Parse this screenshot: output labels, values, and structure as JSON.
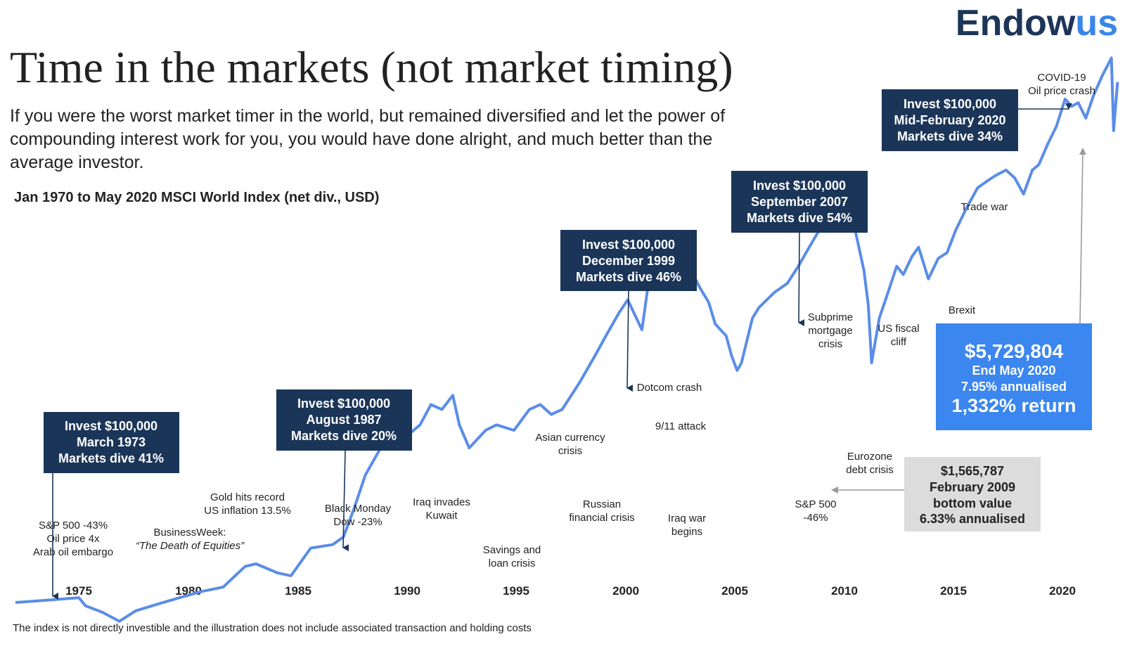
{
  "logo": {
    "part1": "Endow",
    "part2": "us",
    "color1": "#1d3557",
    "color2": "#3a86e8"
  },
  "title": "Time in the markets (not market timing)",
  "subtitle_lines": [
    "If you were the worst market timer in the world, but remained diversified and let the power of",
    "compounding interest work for you, you would have done alright, and much better than the",
    "average investor."
  ],
  "index_label": "Jan 1970 to May 2020 MSCI World Index (net div., USD)",
  "footnote": "The index is not directly investible and the illustration does not include associated transaction and holding costs",
  "colors": {
    "line": "#5b8de8",
    "navy": "#1b3558",
    "blue_box": "#3b86ef",
    "grey_box": "#dcdcdc",
    "text": "#222222"
  },
  "chart_data": {
    "type": "line",
    "x_ticks": [
      "1975",
      "1980",
      "1985",
      "1990",
      "1995",
      "2000",
      "2005",
      "2010",
      "2015",
      "2020"
    ],
    "x_range": [
      1970.0,
      2020.4
    ],
    "scale": "log",
    "series": [
      {
        "values_note": "",
        "x": [
          1970.0,
          1971.0,
          1972.0,
          1972.9,
          1973.2,
          1974.0,
          1974.75,
          1975.5,
          1976.5,
          1977.5,
          1978.5,
          1979.5,
          1980.5,
          1981.0,
          1982.0,
          1982.6,
          1983.5,
          1984.5,
          1985.0,
          1985.5,
          1986.0,
          1986.7,
          1987.3,
          1987.65,
          1987.9,
          1988.5,
          1989.0,
          1989.5,
          1990.0,
          1990.3,
          1990.75,
          1991.5,
          1992.0,
          1992.8,
          1993.5,
          1994.0,
          1994.5,
          1995.0,
          1995.8,
          1996.5,
          1997.0,
          1997.6,
          1998.0,
          1998.65,
          1999.0,
          1999.5,
          1999.95,
          2000.3,
          2000.8,
          2001.3,
          2001.7,
          2002.0,
          2002.5,
          2002.75,
          2003.0,
          2003.2,
          2003.7,
          2004.0,
          2004.7,
          2005.3,
          2005.8,
          2006.3,
          2006.8,
          2007.3,
          2007.8,
          2008.0,
          2008.4,
          2008.8,
          2009.0,
          2009.15,
          2009.5,
          2009.9,
          2010.3,
          2010.6,
          2011.0,
          2011.3,
          2011.75,
          2012.2,
          2012.6,
          2013.0,
          2013.5,
          2014.0,
          2014.4,
          2014.8,
          2015.3,
          2015.7,
          2016.1,
          2016.5,
          2016.8,
          2017.2,
          2017.6,
          2018.0,
          2018.3,
          2018.6,
          2018.95,
          2019.3,
          2019.7,
          2020.12,
          2020.22,
          2020.4
        ],
        "values": [
          100,
          101,
          102,
          103,
          98,
          94,
          89,
          95,
          99,
          103,
          107,
          110,
          125,
          127,
          120,
          118,
          140,
          143,
          150,
          180,
          220,
          260,
          340,
          365,
          280,
          300,
          340,
          330,
          360,
          300,
          260,
          290,
          300,
          290,
          330,
          340,
          320,
          330,
          390,
          460,
          520,
          600,
          650,
          540,
          760,
          820,
          980,
          870,
          800,
          700,
          640,
          560,
          520,
          460,
          420,
          440,
          580,
          620,
          680,
          720,
          800,
          900,
          1010,
          1150,
          1260,
          1180,
          1000,
          780,
          630,
          440,
          580,
          680,
          800,
          760,
          850,
          900,
          740,
          840,
          870,
          1000,
          1150,
          1300,
          1350,
          1400,
          1450,
          1380,
          1250,
          1450,
          1500,
          1700,
          1900,
          2250,
          2150,
          2200,
          2000,
          2300,
          2600,
          2900,
          1850,
          2500
        ]
      }
    ],
    "annotations": [
      "S&P 500 -43%",
      "Oil price 4x",
      "Arab oil embargo",
      "BusinessWeek:",
      "“The Death of Equities”",
      "Gold hits record",
      "US inflation 13.5%",
      "Black Monday",
      "Dow -23%",
      "Iraq invades",
      "Kuwait",
      "Savings and",
      "loan crisis",
      "Asian currency",
      "crisis",
      "Russian",
      "financial crisis",
      "Dotcom crash",
      "9/11 attack",
      "Iraq war",
      "begins",
      "Subprime",
      "mortgage",
      "crisis",
      "S&P 500",
      "-46%",
      "Eurozone",
      "debt crisis",
      "US fiscal",
      "cliff",
      "Brexit",
      "Trade war",
      "COVID-19",
      "Oil price crash"
    ]
  },
  "invest_boxes": [
    {
      "lines": [
        "Invest $100,000",
        "March 1973",
        "Markets dive 41%"
      ]
    },
    {
      "lines": [
        "Invest $100,000",
        "August 1987",
        "Markets dive 20%"
      ]
    },
    {
      "lines": [
        "Invest $100,000",
        "December 1999",
        "Markets dive 46%"
      ]
    },
    {
      "lines": [
        "Invest $100,000",
        "September 2007",
        "Markets dive 54%"
      ]
    },
    {
      "lines": [
        "Invest $100,000",
        "Mid-February 2020",
        "Markets dive 34%"
      ]
    }
  ],
  "result_box": {
    "value": "$5,729,804",
    "line2": "End May 2020",
    "line3": "7.95% annualised",
    "line4": "1,332% return"
  },
  "bottom_box": {
    "value": "$1,565,787",
    "line2": "February 2009",
    "line3": "bottom value",
    "line4": "6.33% annualised"
  }
}
